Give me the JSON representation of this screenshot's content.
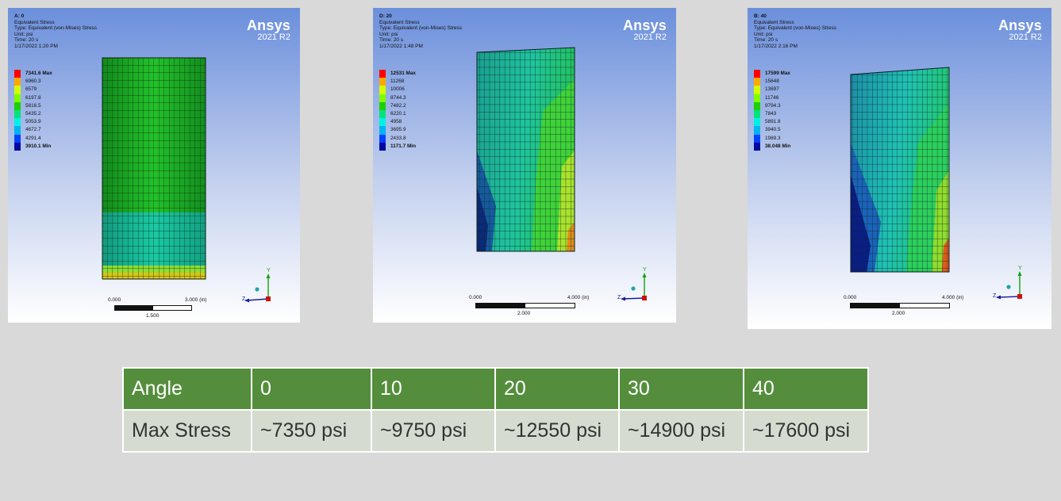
{
  "legend_colors": [
    "#ff0000",
    "#ffa800",
    "#d2ff00",
    "#7cff00",
    "#1ed000",
    "#00e37c",
    "#00f0e6",
    "#00b4f0",
    "#0040ff",
    "#000aa0"
  ],
  "panels": [
    {
      "id": "A",
      "header": [
        "A: 0",
        "Equivalent Stress",
        "Type: Equivalent (von-Mises) Stress",
        "Unit: psi",
        "Time: 20 s",
        "1/17/2022 1:20 PM"
      ],
      "brand": "Ansys",
      "version": "2021 R2",
      "legend": [
        "7341.6 Max",
        "6960.3",
        "6579",
        "6197.8",
        "5816.5",
        "5435.2",
        "5053.9",
        "4672.7",
        "4291.4",
        "3910.1 Min"
      ],
      "scale": {
        "left": "0.000",
        "right": "3.000 (in)",
        "mid": "1.500"
      },
      "triad": {
        "y": "Y",
        "z": "Z"
      }
    },
    {
      "id": "D",
      "header": [
        "D: 20",
        "Equivalent Stress",
        "Type: Equivalent (von-Mises) Stress",
        "Unit: psi",
        "Time: 20 s",
        "1/17/2022 1:48 PM"
      ],
      "brand": "Ansys",
      "version": "2021 R2",
      "legend": [
        "12531 Max",
        "11268",
        "10006",
        "8744.3",
        "7482.2",
        "6220.1",
        "4958",
        "3695.9",
        "2433.8",
        "1171.7 Min"
      ],
      "scale": {
        "left": "0.000",
        "right": "4.000 (in)",
        "mid": "2.000"
      },
      "triad": {
        "y": "Y",
        "z": "Z"
      }
    },
    {
      "id": "B",
      "header": [
        "B: 40",
        "Equivalent Stress",
        "Type: Equivalent (von-Mises) Stress",
        "Unit: psi",
        "Time: 20 s",
        "1/17/2022 2:16 PM"
      ],
      "brand": "Ansys",
      "version": "2021 R2",
      "legend": [
        "17599 Max",
        "15648",
        "13697",
        "11746",
        "9794.3",
        "7843",
        "5891.8",
        "3940.5",
        "1989.3",
        "38.048 Min"
      ],
      "scale": {
        "left": "0.000",
        "right": "4.000 (in)",
        "mid": "2.000"
      },
      "triad": {
        "y": "Y",
        "z": "Z"
      }
    }
  ],
  "table": {
    "header": [
      "Angle",
      "0",
      "10",
      "20",
      "30",
      "40"
    ],
    "row": [
      "Max Stress",
      "~7350 psi",
      "~9750 psi",
      "~12550 psi",
      "~14900 psi",
      "~17600 psi"
    ],
    "header_color": "#548e3c",
    "row_color": "#d5dccf"
  }
}
